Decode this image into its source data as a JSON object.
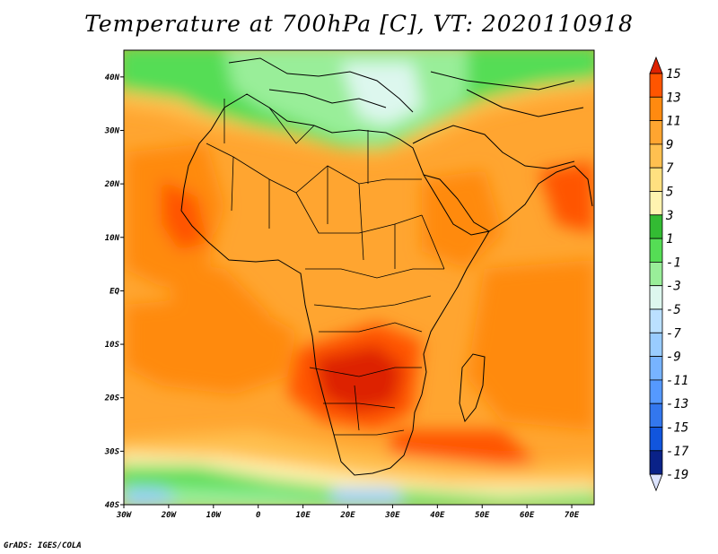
{
  "title": "Temperature at 700hPa [C], VT: 2020110918",
  "credit": "GrADS: IGES/COLA",
  "map": {
    "projection": "lat-lon",
    "lon_range": [
      -30,
      75
    ],
    "lat_range": [
      -40,
      45
    ],
    "x_ticks": [
      "30W",
      "20W",
      "10W",
      "0",
      "10E",
      "20E",
      "30E",
      "40E",
      "50E",
      "60E",
      "70E"
    ],
    "y_ticks": [
      "40N",
      "30N",
      "20N",
      "10N",
      "EQ",
      "10S",
      "20S",
      "30S",
      "40S"
    ]
  },
  "colorbar": {
    "labels": [
      "15",
      "13",
      "11",
      "9",
      "7",
      "5",
      "3",
      "1",
      "-1",
      "-3",
      "-5",
      "-7",
      "-9",
      "-11",
      "-13",
      "-15",
      "-17",
      "-19"
    ],
    "colors": [
      "#dd2200",
      "#ff5500",
      "#ff8a10",
      "#ffa530",
      "#ffc050",
      "#ffe080",
      "#fff3b0",
      "#33bb33",
      "#55dd55",
      "#99ee99",
      "#ddf7ee",
      "#bbe0ff",
      "#99ccff",
      "#77b3ff",
      "#5599ff",
      "#3377ee",
      "#1155dd",
      "#0a2288",
      "#e4e4ff"
    ],
    "top_arrow_color": "#dd2200",
    "bottom_arrow_color": "#dde4ff"
  }
}
